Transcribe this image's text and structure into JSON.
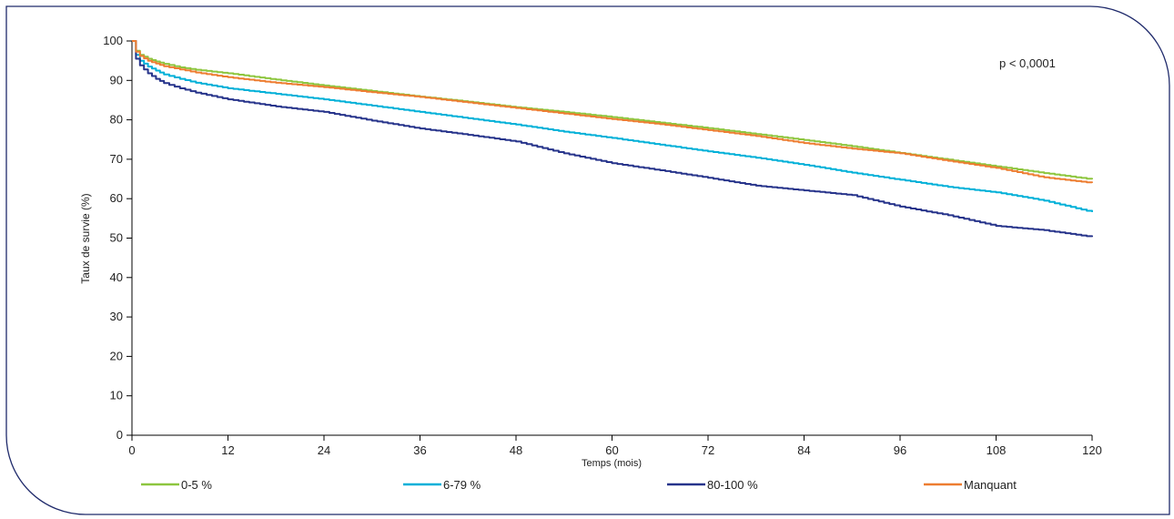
{
  "chart_data": {
    "type": "line",
    "title": "",
    "xlabel": "Temps (mois)",
    "ylabel": "Taux de survie (%)",
    "xlim": [
      0,
      120
    ],
    "ylim": [
      0,
      100
    ],
    "xticks": [
      0,
      12,
      24,
      36,
      48,
      60,
      72,
      84,
      96,
      108,
      120
    ],
    "yticks": [
      0,
      10,
      20,
      30,
      40,
      50,
      60,
      70,
      80,
      90,
      100
    ],
    "grid": false,
    "legend_position": "bottom",
    "annotation": "p < 0,0001",
    "frame_color": "#1f2a6b",
    "series": [
      {
        "name": "0-5 %",
        "color": "#8dc63f",
        "x": [
          0,
          0.5,
          1,
          2,
          3,
          4,
          6,
          8,
          12,
          18,
          24,
          30,
          36,
          42,
          48,
          54,
          60,
          66,
          72,
          78,
          84,
          90,
          96,
          102,
          108,
          114,
          120
        ],
        "y": [
          100,
          97.5,
          96.5,
          95.5,
          94.8,
          94.2,
          93.3,
          92.7,
          91.8,
          90.2,
          88.7,
          87.3,
          85.9,
          84.6,
          83.2,
          82.0,
          80.7,
          79.3,
          77.9,
          76.4,
          74.9,
          73.3,
          71.6,
          69.9,
          68.2,
          66.5,
          64.9
        ]
      },
      {
        "name": "6-79 %",
        "color": "#00b0d8",
        "x": [
          0,
          0.5,
          1,
          2,
          3,
          4,
          6,
          8,
          12,
          18,
          24,
          30,
          36,
          42,
          48,
          54,
          60,
          66,
          72,
          78,
          84,
          90,
          96,
          102,
          108,
          114,
          120
        ],
        "y": [
          100,
          96.5,
          95,
          93.5,
          92.5,
          91.5,
          90.4,
          89.4,
          88.0,
          86.6,
          85.2,
          83.6,
          82.0,
          80.4,
          78.8,
          77.0,
          75.4,
          73.7,
          72.0,
          70.4,
          68.6,
          66.6,
          64.8,
          63.0,
          61.6,
          59.5,
          56.6
        ]
      },
      {
        "name": "80-100 %",
        "color": "#27348b",
        "x": [
          0,
          0.5,
          1,
          2,
          3,
          4,
          6,
          8,
          12,
          18,
          24,
          30,
          36,
          42,
          48,
          54,
          60,
          66,
          72,
          78,
          84,
          90,
          96,
          102,
          108,
          114,
          120
        ],
        "y": [
          100,
          95.5,
          93.8,
          91.8,
          90.4,
          89.3,
          88.0,
          86.9,
          85.2,
          83.4,
          82.0,
          79.8,
          77.8,
          76.2,
          74.5,
          71.5,
          69.0,
          67.2,
          65.3,
          63.3,
          62.1,
          60.9,
          58.0,
          55.8,
          53.1,
          52.0,
          50.3
        ]
      },
      {
        "name": "Manquant",
        "color": "#ed7d31",
        "x": [
          0,
          0.5,
          1,
          2,
          3,
          4,
          6,
          8,
          12,
          18,
          24,
          30,
          36,
          42,
          48,
          54,
          60,
          66,
          72,
          78,
          84,
          90,
          96,
          102,
          108,
          114,
          120
        ],
        "y": [
          100,
          97.3,
          96.2,
          95.0,
          94.3,
          93.6,
          92.8,
          92.0,
          90.8,
          89.4,
          88.3,
          87.0,
          85.8,
          84.4,
          83.0,
          81.6,
          80.2,
          78.9,
          77.4,
          75.9,
          74.1,
          72.7,
          71.5,
          69.6,
          67.8,
          65.4,
          64.0
        ]
      }
    ]
  }
}
